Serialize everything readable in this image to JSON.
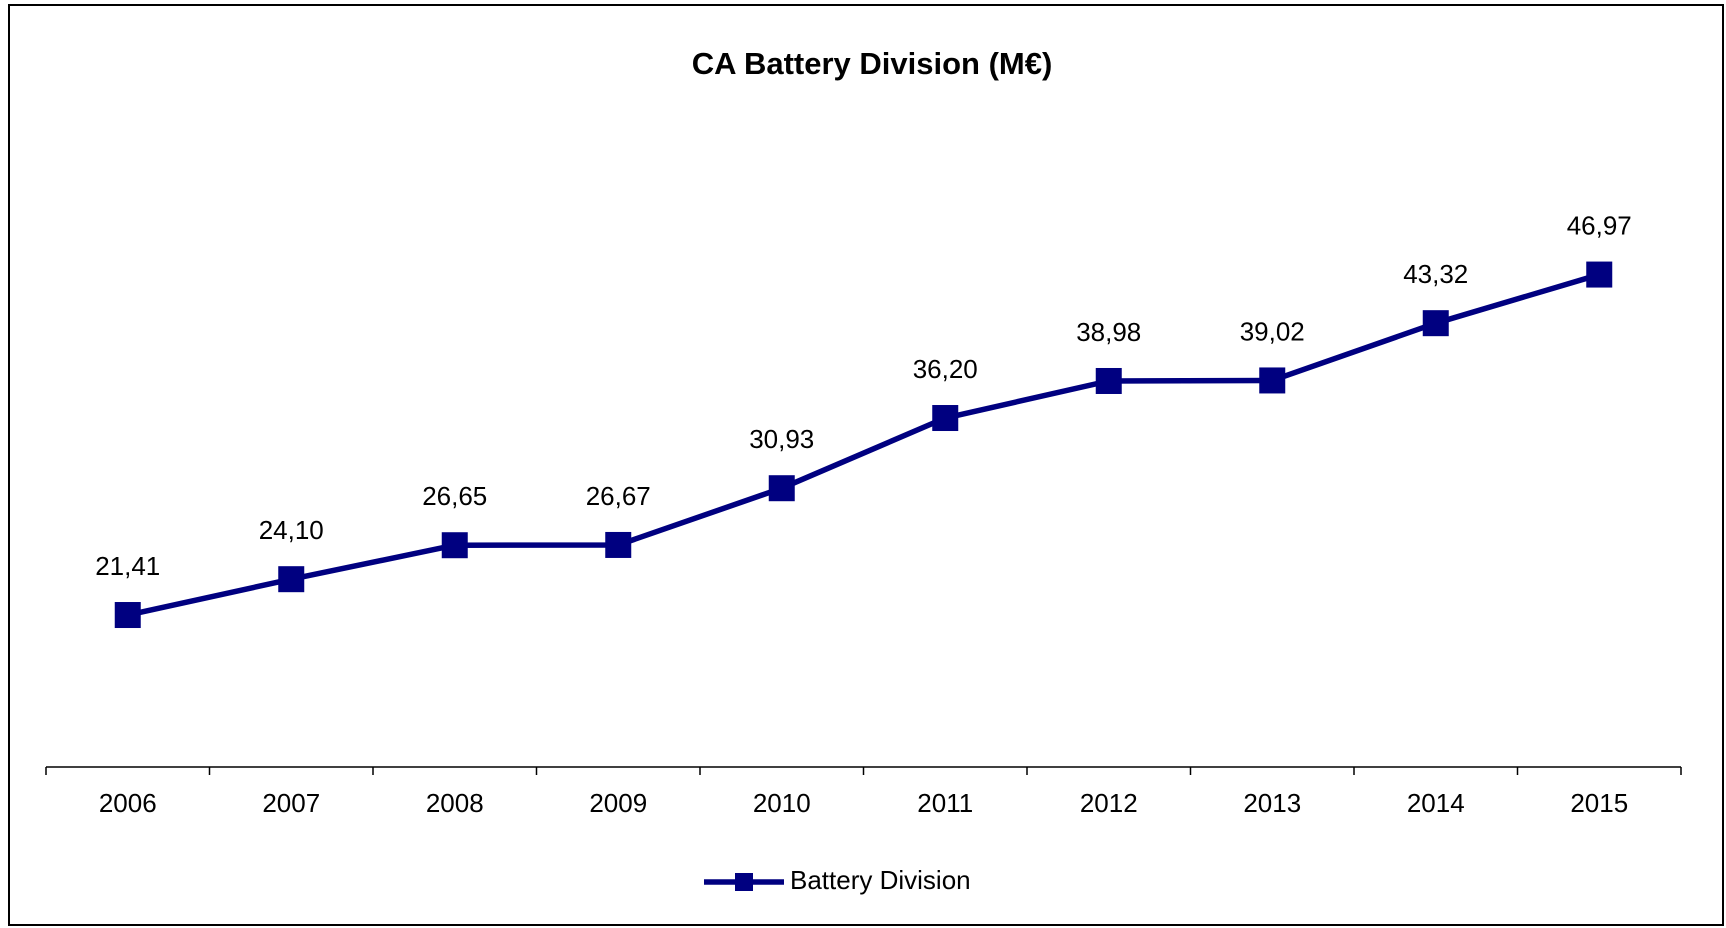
{
  "chart_data": {
    "type": "line",
    "title": "CA Battery Division (M€)",
    "categories": [
      "2006",
      "2007",
      "2008",
      "2009",
      "2010",
      "2011",
      "2012",
      "2013",
      "2014",
      "2015"
    ],
    "series": [
      {
        "name": "Battery Division",
        "color": "#000080",
        "values": [
          21.41,
          24.1,
          26.65,
          26.67,
          30.93,
          36.2,
          38.98,
          39.02,
          43.32,
          46.97
        ],
        "value_labels": [
          "21,41",
          "24,10",
          "26,65",
          "26,67",
          "30,93",
          "36,20",
          "38,98",
          "39,02",
          "43,32",
          "46,97"
        ]
      }
    ],
    "ylim": [
      10,
      60
    ],
    "legend": "bottom"
  }
}
